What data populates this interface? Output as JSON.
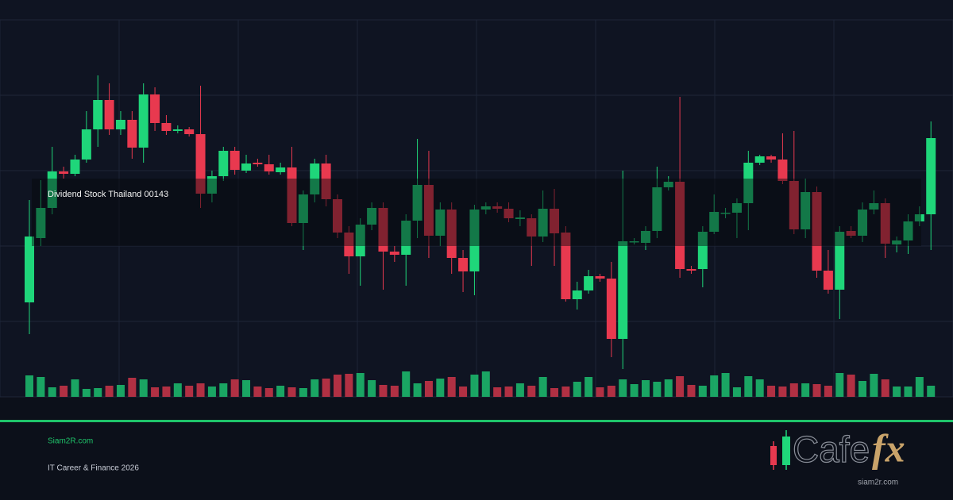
{
  "chart_data": {
    "type": "candlestick",
    "annotation": "Dividend Stock Thailand 00143",
    "open": [
      119,
      200,
      238,
      284,
      281,
      299,
      337,
      374,
      337,
      349,
      314,
      381,
      345,
      335,
      337,
      331,
      256,
      278,
      310,
      285,
      295,
      293,
      283,
      289,
      219,
      255,
      294,
      249,
      207,
      177,
      217,
      238,
      183,
      179,
      222,
      267,
      203,
      236,
      175,
      158,
      236,
      240,
      237,
      224,
      225,
      202,
      237,
      207,
      123,
      134,
      152,
      149,
      73,
      195,
      194,
      209,
      264,
      271,
      161,
      161,
      208,
      231,
      232,
      244,
      295,
      303,
      299,
      272,
      211,
      258,
      159,
      135,
      209,
      203,
      236,
      244,
      192,
      197,
      221,
      230
    ],
    "high": [
      248,
      273,
      315,
      290,
      305,
      360,
      405,
      395,
      360,
      360,
      395,
      390,
      355,
      342,
      340,
      392,
      285,
      315,
      315,
      305,
      300,
      305,
      295,
      315,
      260,
      300,
      305,
      255,
      215,
      225,
      245,
      245,
      190,
      230,
      325,
      310,
      245,
      245,
      185,
      242,
      245,
      245,
      245,
      235,
      230,
      260,
      262,
      215,
      145,
      160,
      155,
      170,
      285,
      200,
      215,
      290,
      278,
      378,
      165,
      215,
      255,
      238,
      250,
      310,
      305,
      305,
      332,
      335,
      275,
      265,
      185,
      215,
      215,
      245,
      260,
      250,
      202,
      230,
      240,
      347
    ],
    "low": [
      79,
      190,
      230,
      275,
      278,
      295,
      315,
      330,
      330,
      300,
      295,
      335,
      330,
      332,
      328,
      238,
      245,
      272,
      280,
      282,
      290,
      280,
      280,
      215,
      185,
      245,
      240,
      200,
      155,
      140,
      210,
      135,
      170,
      140,
      200,
      175,
      190,
      155,
      132,
      128,
      230,
      232,
      220,
      215,
      165,
      195,
      165,
      120,
      110,
      130,
      145,
      50,
      35,
      192,
      185,
      200,
      260,
      150,
      155,
      138,
      205,
      225,
      200,
      210,
      292,
      295,
      268,
      205,
      200,
      150,
      130,
      98,
      200,
      195,
      230,
      175,
      182,
      180,
      215,
      185
    ],
    "close": [
      202,
      238,
      284,
      281,
      299,
      337,
      374,
      337,
      349,
      314,
      381,
      345,
      335,
      337,
      331,
      256,
      278,
      310,
      286,
      294,
      293,
      284,
      289,
      219,
      255,
      294,
      249,
      207,
      177,
      217,
      238,
      183,
      179,
      222,
      267,
      203,
      236,
      175,
      158,
      236,
      240,
      237,
      225,
      226,
      202,
      237,
      206,
      123,
      134,
      152,
      149,
      73,
      196,
      196,
      209,
      264,
      271,
      161,
      159,
      208,
      233,
      232,
      244,
      295,
      303,
      299,
      272,
      211,
      258,
      159,
      135,
      208,
      203,
      236,
      244,
      193,
      197,
      221,
      230,
      326
    ],
    "volume": [
      27,
      25,
      12,
      14,
      22,
      10,
      11,
      14,
      15,
      24,
      22,
      12,
      13,
      17,
      14,
      17,
      13,
      17,
      22,
      21,
      13,
      11,
      14,
      12,
      11,
      22,
      23,
      28,
      29,
      30,
      21,
      15,
      14,
      32,
      17,
      20,
      23,
      25,
      13,
      28,
      32,
      12,
      13,
      17,
      14,
      25,
      11,
      13,
      19,
      25,
      12,
      14,
      22,
      16,
      21,
      19,
      22,
      26,
      15,
      14,
      27,
      30,
      12,
      26,
      22,
      14,
      13,
      17,
      17,
      16,
      14,
      30,
      28,
      20,
      29,
      22,
      13,
      13,
      25,
      14
    ],
    "up_color": "#1fd67a",
    "down_color": "#e8394f",
    "ylim": [
      0,
      475
    ],
    "yticks": [
      0,
      95,
      190,
      285,
      380,
      475
    ],
    "grid": true
  },
  "footer": {
    "site": "Siam2R.com",
    "tagline": "IT Career & Finance 2026"
  },
  "logo": {
    "main": "Cafe",
    "accent": "fx",
    "url": "siam2r.com"
  }
}
